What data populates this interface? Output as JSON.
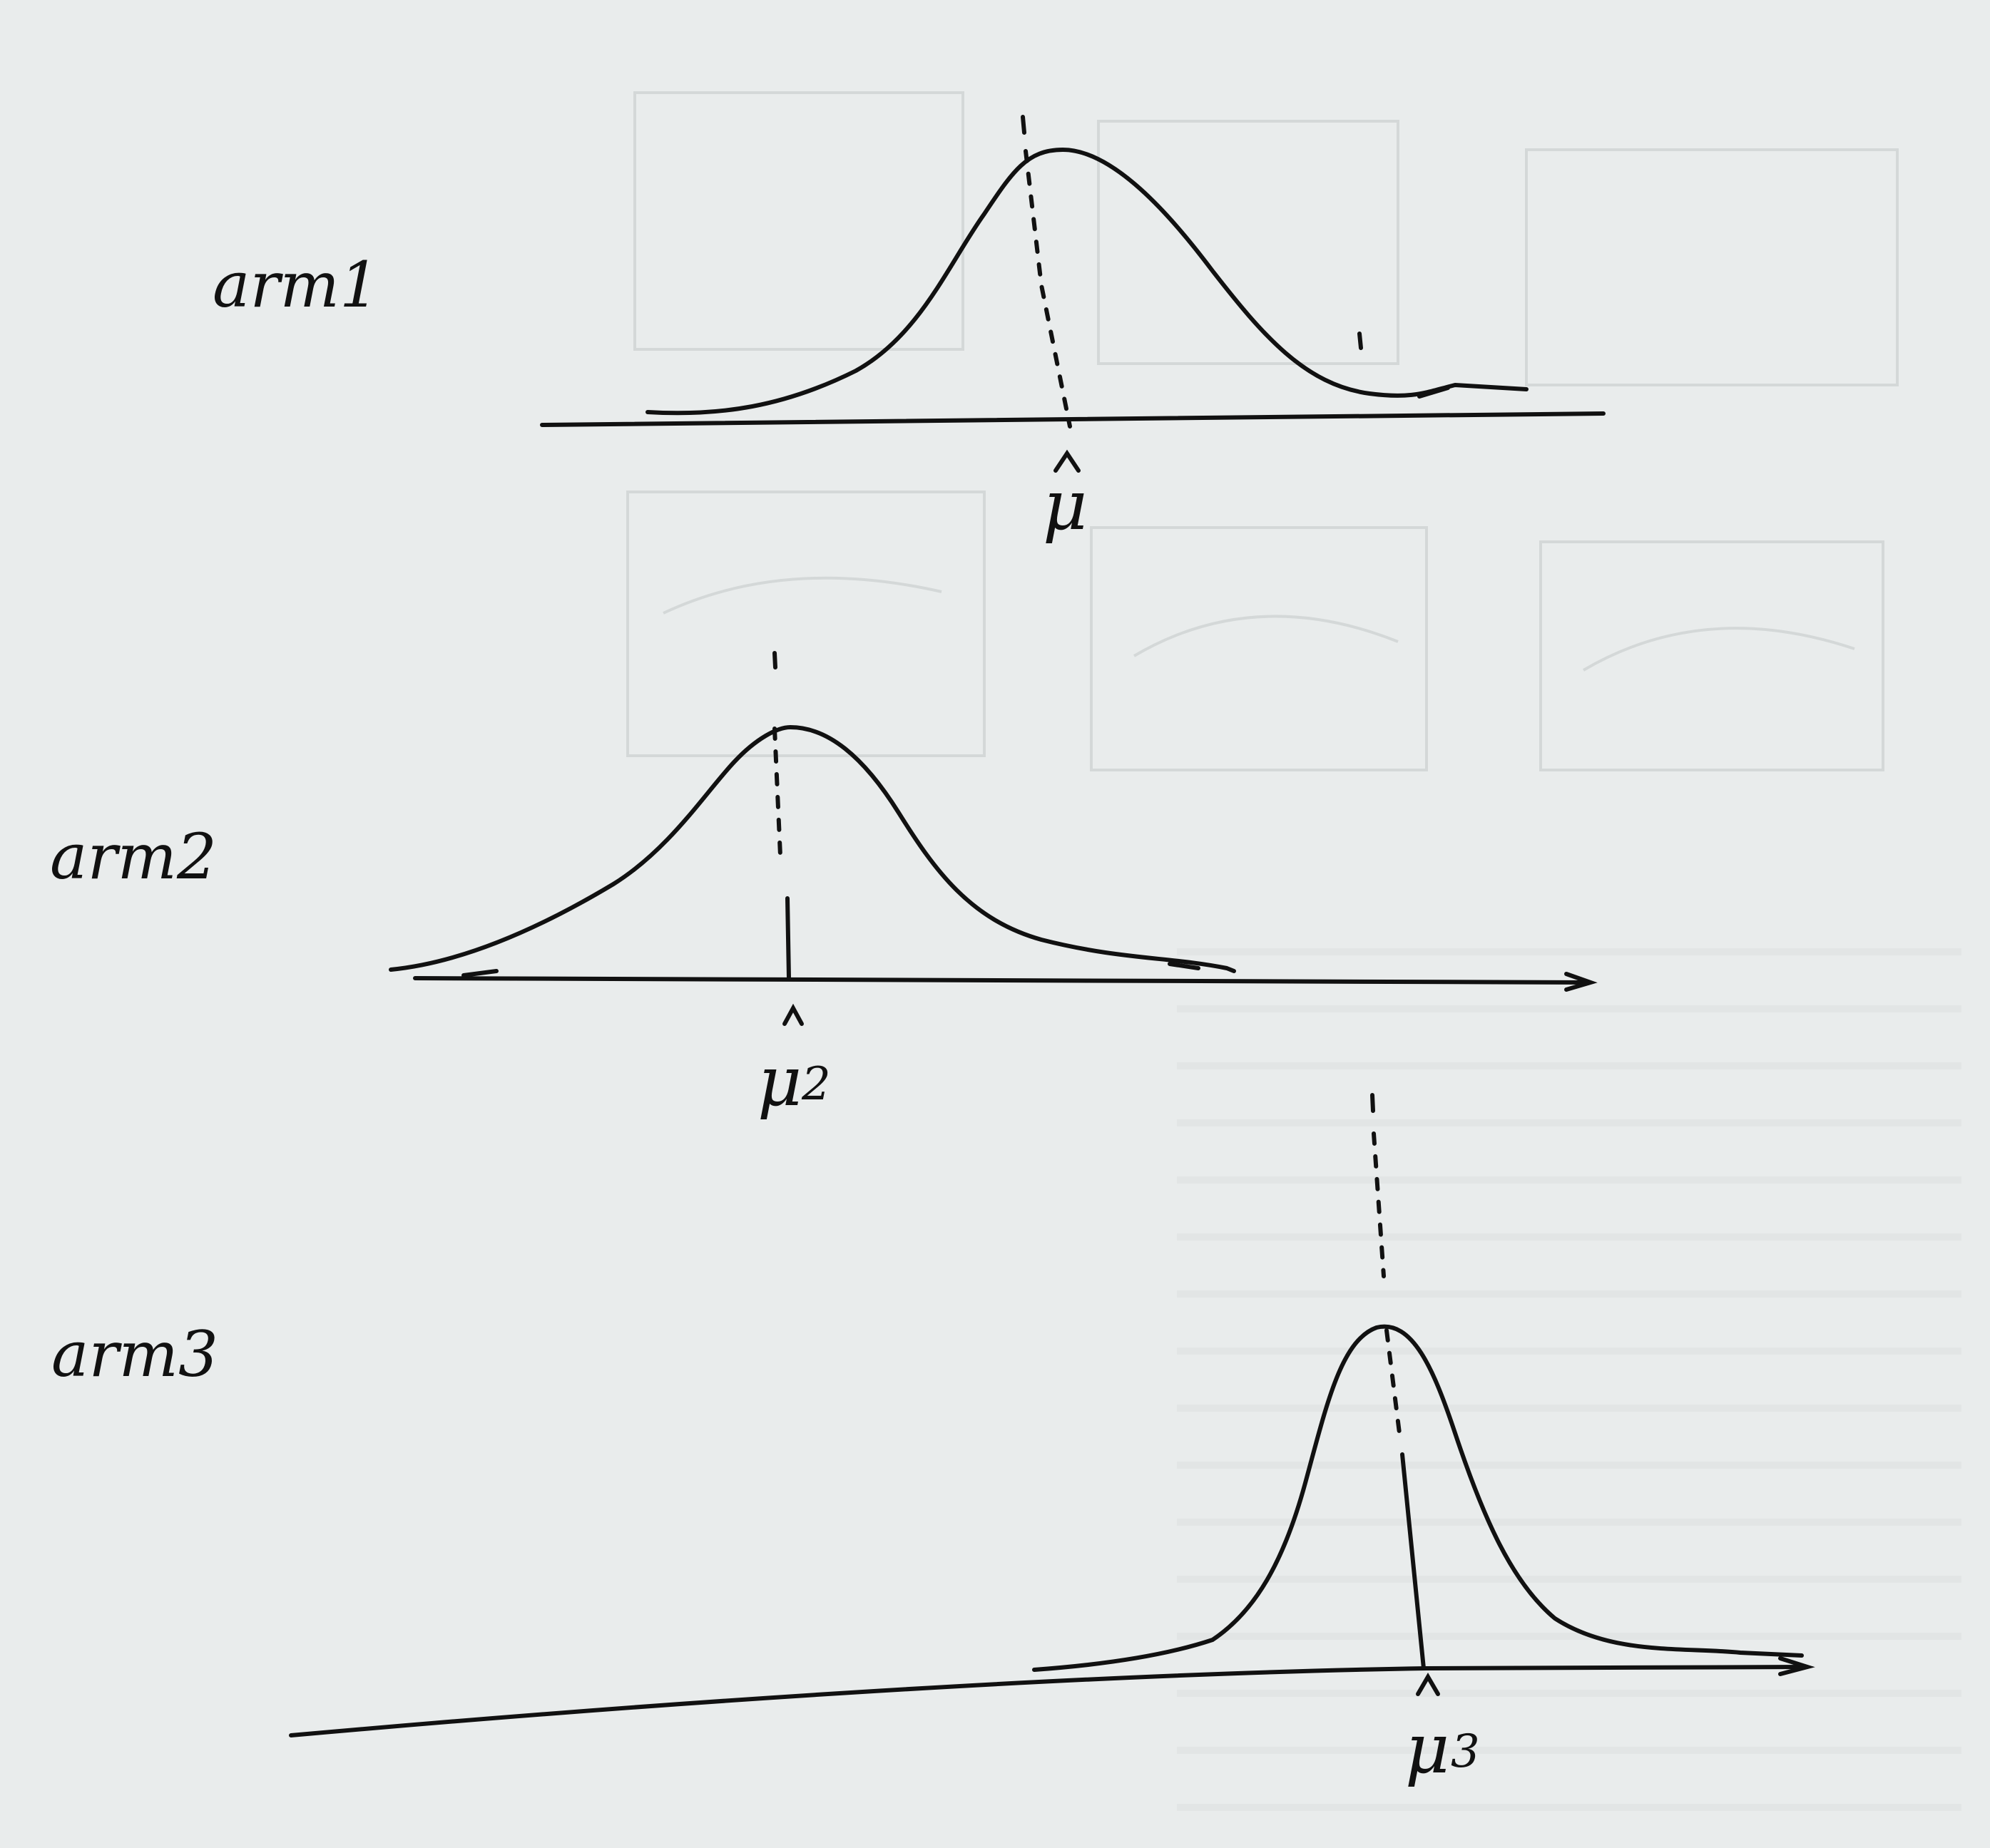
{
  "panels": [
    {
      "id": "arm1",
      "label": "arm1",
      "estimate_symbol": "μ",
      "estimate_subscript": ""
    },
    {
      "id": "arm2",
      "label": "arm2",
      "estimate_symbol": "μ",
      "estimate_subscript": "2"
    },
    {
      "id": "arm3",
      "label": "arm3",
      "estimate_symbol": "μ",
      "estimate_subscript": "3"
    }
  ]
}
